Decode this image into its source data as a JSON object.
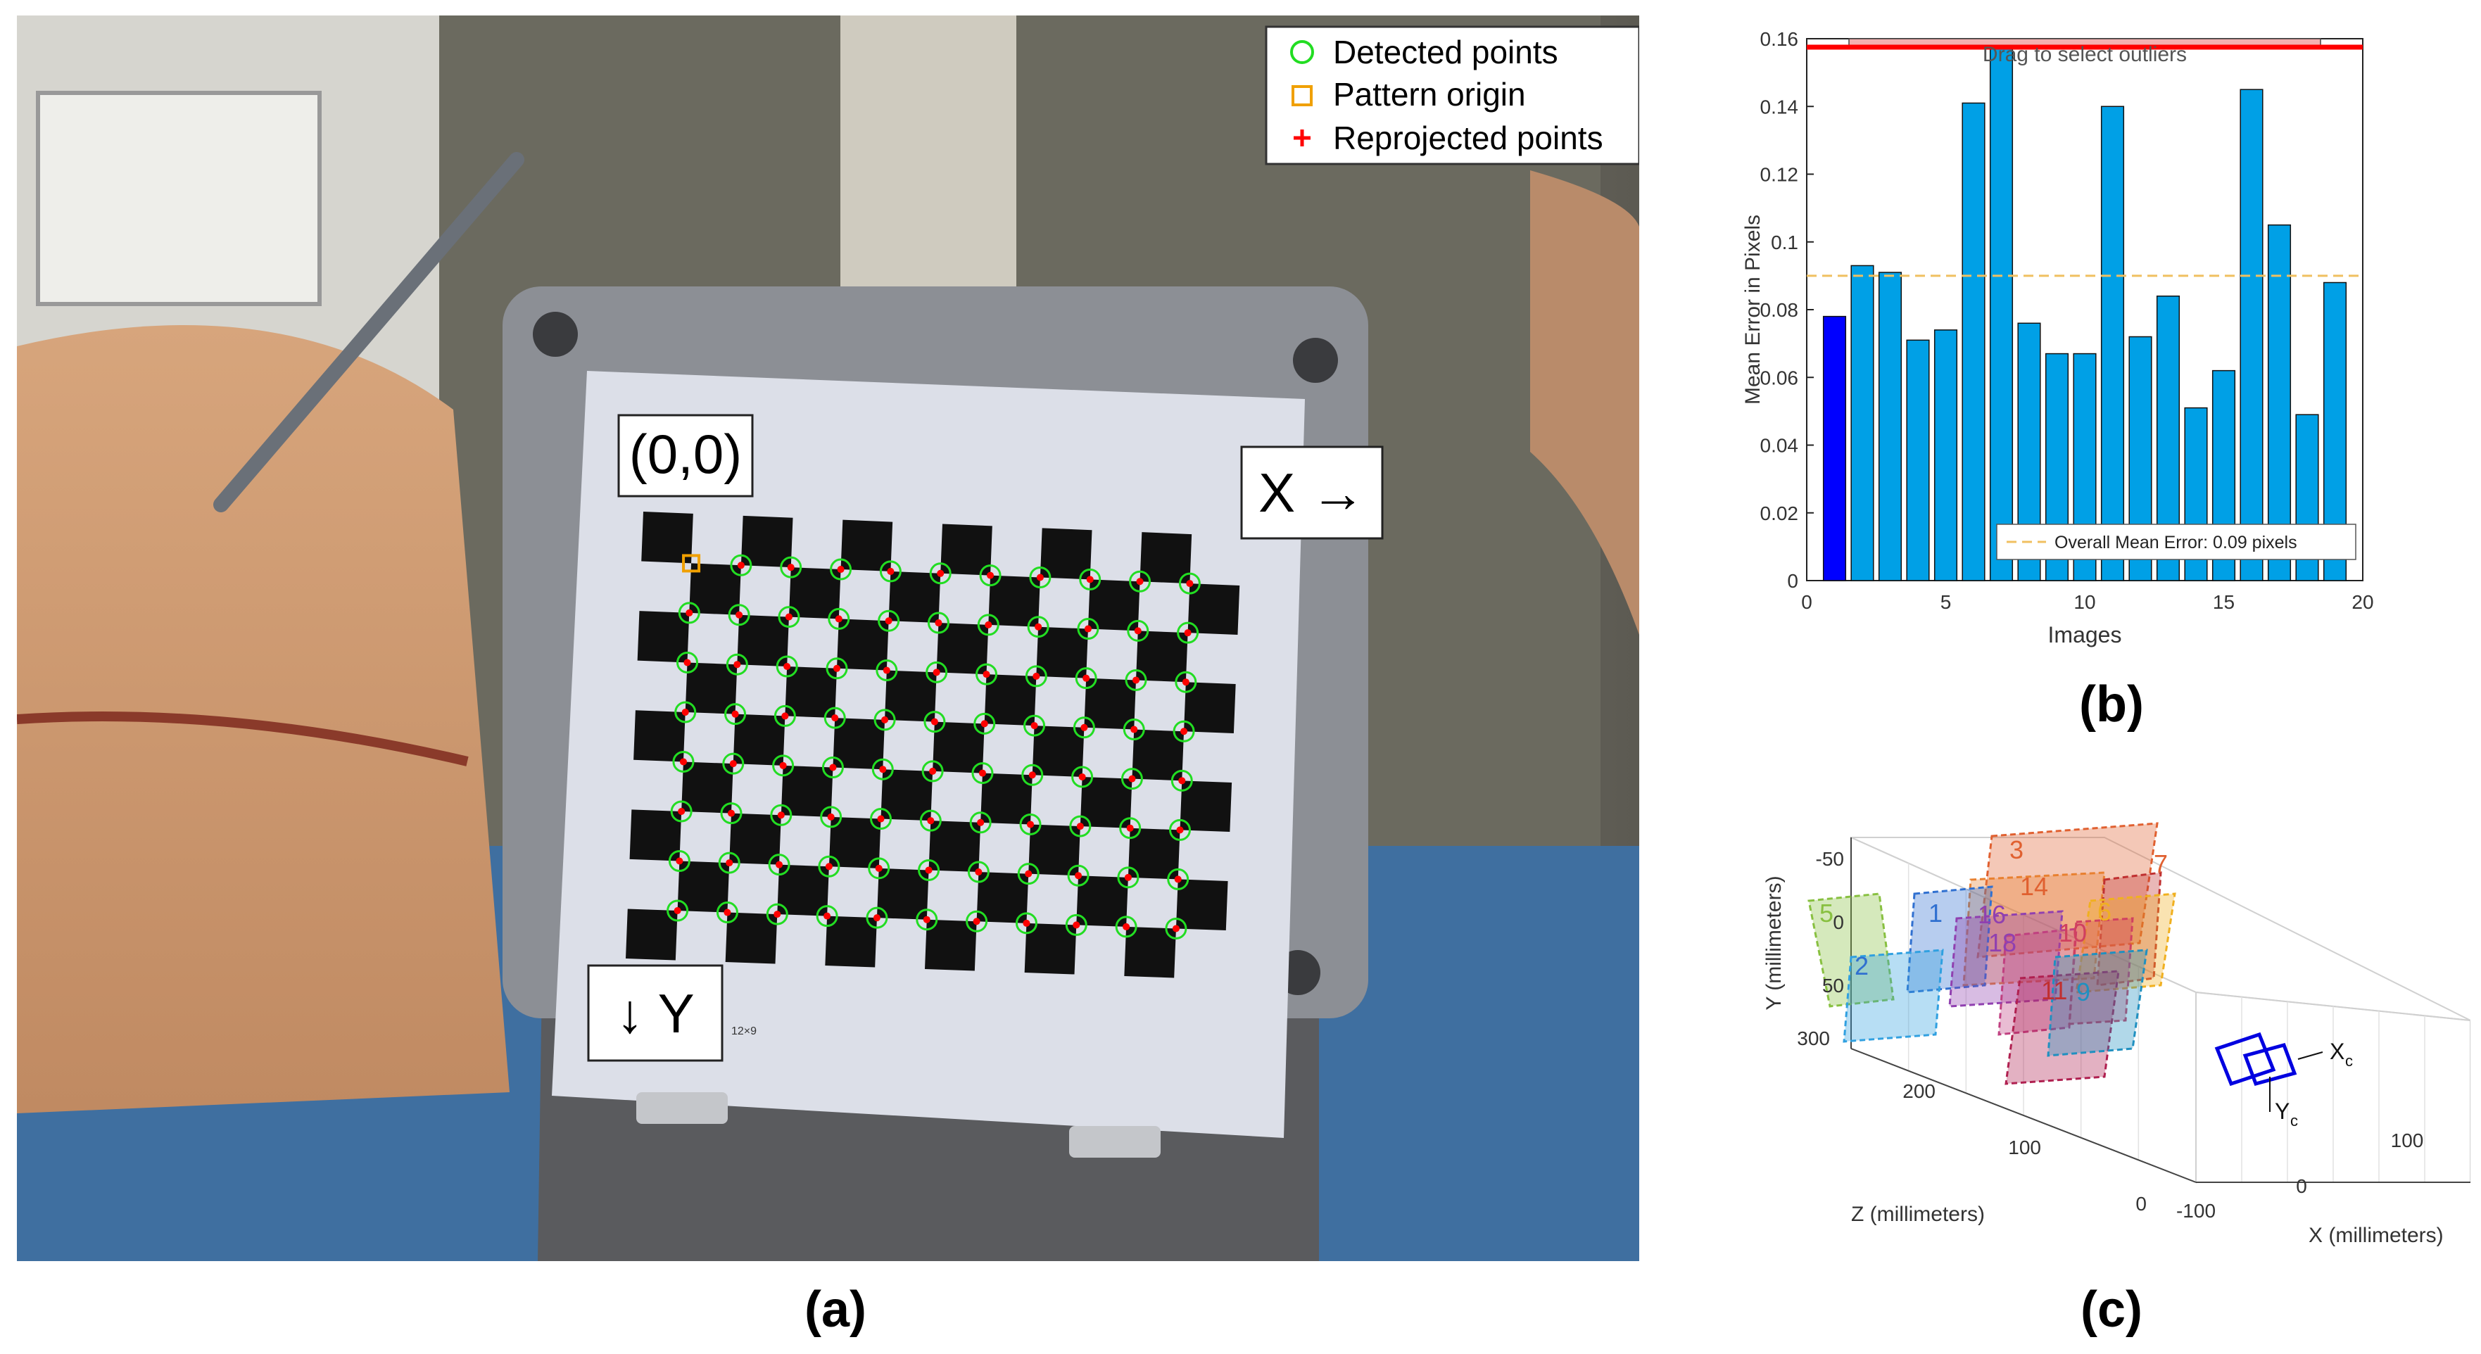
{
  "captions": {
    "a": "(a)",
    "b": "(b)",
    "c": "(c)"
  },
  "panel_a": {
    "labels": {
      "origin": "(0,0)",
      "x_axis": "X →",
      "y_axis": "↓ Y",
      "board_size": "12×9"
    },
    "legend": [
      "Detected points",
      "Pattern origin",
      "Reprojected points"
    ],
    "colors": {
      "detected": "#22dd22",
      "origin": "#f0a000",
      "reprojected": "#ff0000"
    }
  },
  "chart_data": [
    {
      "type": "bar",
      "title": "",
      "xlabel": "Images",
      "ylabel": "Mean Error in Pixels",
      "x": [
        1,
        2,
        3,
        4,
        5,
        6,
        7,
        8,
        9,
        10,
        11,
        12,
        13,
        14,
        15,
        16,
        17,
        18,
        19
      ],
      "values": [
        0.078,
        0.093,
        0.091,
        0.071,
        0.074,
        0.141,
        0.157,
        0.076,
        0.067,
        0.067,
        0.14,
        0.072,
        0.084,
        0.051,
        0.062,
        0.145,
        0.105,
        0.049,
        0.088
      ],
      "xlim": [
        0,
        20
      ],
      "ylim": [
        0,
        0.16
      ],
      "xticks": [
        "0",
        "5",
        "10",
        "15",
        "20"
      ],
      "yticks": [
        "0",
        "0.02",
        "0.04",
        "0.06",
        "0.08",
        "0.1",
        "0.12",
        "0.14",
        "0.16"
      ],
      "mean_error": 0.09,
      "legend": "Overall Mean Error: 0.09 pixels",
      "legend_position": "bottom-right",
      "drag_label": "Drag to select outliers",
      "selected_index": 0,
      "colors": {
        "bar": "#00a0e6",
        "selected": "#0000ff",
        "mean_line": "#f0c060",
        "threshold": "#ff0000"
      }
    },
    {
      "type": "scatter",
      "title": "",
      "xlabel": "X (millimeters)",
      "ylabel": "Y (millimeters)",
      "zlabel": "Z (millimeters)",
      "xticks": [
        "-100",
        "0",
        "100"
      ],
      "yticks": [
        "-50",
        "0",
        "50"
      ],
      "zticks": [
        "0",
        "100",
        "200",
        "300"
      ],
      "camera_labels": {
        "x": "X",
        "y": "Y",
        "sub": "c"
      },
      "pattern_labels": [
        "3",
        "14",
        "7",
        "5",
        "1",
        "16",
        "6",
        "2",
        "18",
        "10",
        "11",
        "9"
      ]
    }
  ]
}
